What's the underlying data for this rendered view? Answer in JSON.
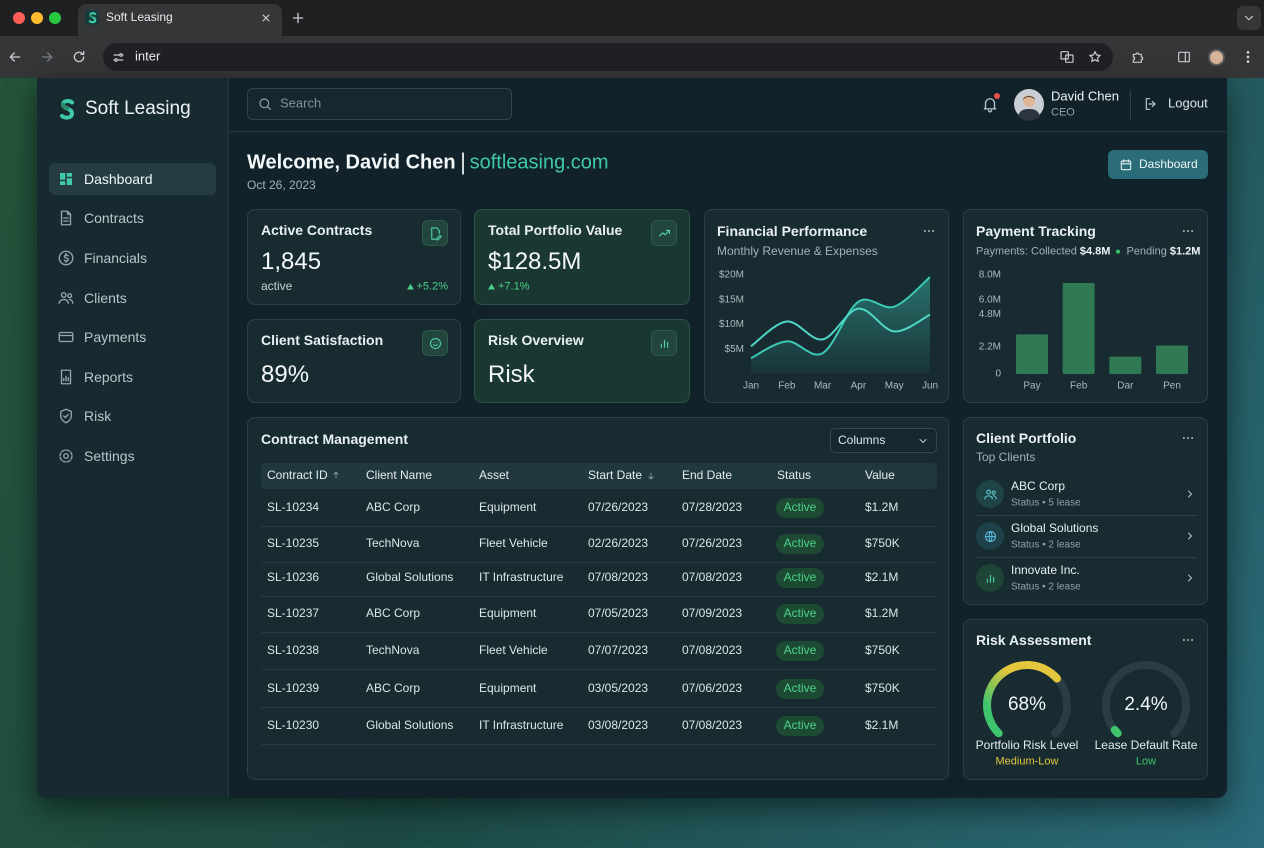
{
  "browser": {
    "tab_title": "Soft Leasing",
    "url": "inter"
  },
  "sidebar": {
    "brand": "Soft Leasing",
    "active": 0,
    "nav": [
      "Dashboard",
      "Contracts",
      "Financials",
      "Clients",
      "Payments",
      "Reports",
      "Risk",
      "Settings"
    ]
  },
  "topbar": {
    "search_placeholder": "Search",
    "user_name": "David Chen",
    "user_role": "CEO",
    "logout": "Logout"
  },
  "header": {
    "welcome": "Welcome, David Chen",
    "domain": "softleasing.com",
    "date": "Oct 26, 2023",
    "button": "Dashboard"
  },
  "kpis": [
    {
      "title": "Active Contracts",
      "value": "1,845",
      "note": "active",
      "change": "+5.2%"
    },
    {
      "title": "Total Portfolio Value",
      "value": "$128.5M",
      "change": "+7.1%"
    },
    {
      "title": "Client Satisfaction",
      "value": "89%"
    },
    {
      "title": "Risk Overview",
      "value": "Risk"
    }
  ],
  "chart_data": [
    {
      "type": "line",
      "title": "Financial Performance",
      "subtitle": "Monthly Revenue & Expenses",
      "categories": [
        "Jan",
        "Feb",
        "Mar",
        "Apr",
        "May",
        "Jun"
      ],
      "series": [
        {
          "color": "#3cc9b4",
          "area": true,
          "values": [
            3.2,
            6.6,
            4.2,
            14.6,
            13.6,
            19.6
          ]
        },
        {
          "color": "#4fd6c6",
          "values": [
            5.6,
            10.6,
            7,
            13.2,
            8.6,
            12
          ]
        }
      ],
      "ylim": [
        0,
        20
      ],
      "yticks": [
        {
          "value": 20,
          "label": "$20M"
        },
        {
          "value": 15,
          "label": "$15M"
        },
        {
          "value": 10,
          "label": "$10M"
        },
        {
          "value": 5,
          "label": "$5M"
        }
      ]
    },
    {
      "type": "bar",
      "title": "Payment Tracking",
      "summary": {
        "collected_label": "Payments: Collected",
        "collected": "$4.8M",
        "pending_label": "Pending",
        "pending": "$1.2M"
      },
      "categories": [
        "Pay",
        "Feb",
        "Dar",
        "Pen"
      ],
      "values": [
        3.2,
        7.35,
        1.4,
        2.3
      ],
      "color": "#2f7a55",
      "ylim": [
        0,
        8
      ],
      "yticks": [
        {
          "value": 8,
          "label": "8.0M"
        },
        {
          "value": 6,
          "label": "6.0M"
        },
        {
          "value": 4.8,
          "label": "4.8M"
        },
        {
          "value": 2.2,
          "label": "2.2M"
        },
        0
      ]
    }
  ],
  "contracts": {
    "title": "Contract Management",
    "columns_button": "Columns",
    "columns": [
      "Contract ID",
      "Client Name",
      "Asset",
      "Start Date",
      "End Date",
      "Status",
      "Value"
    ],
    "rows": [
      [
        "SL-10234",
        "ABC Corp",
        "Equipment",
        "07/26/2023",
        "07/28/2023",
        "Active",
        "$1.2M"
      ],
      [
        "SL-10235",
        "TechNova",
        "Fleet Vehicle",
        "02/26/2023",
        "07/26/2023",
        "Active",
        "$750K"
      ],
      [
        "SL-10236",
        "Global Solutions",
        "IT Infrastructure",
        "07/08/2023",
        "07/08/2023",
        "Active",
        "$2.1M"
      ],
      [
        "SL-10237",
        "ABC Corp",
        "Equipment",
        "07/05/2023",
        "07/09/2023",
        "Active",
        "$1.2M"
      ],
      [
        "SL-10238",
        "TechNova",
        "Fleet Vehicle",
        "07/07/2023",
        "07/08/2023",
        "Active",
        "$750K"
      ],
      [
        "SL-10239",
        "ABC Corp",
        "Equipment",
        "03/05/2023",
        "07/06/2023",
        "Active",
        "$750K"
      ],
      [
        "SL-10230",
        "Global Solutions",
        "IT Infrastructure",
        "03/08/2023",
        "07/08/2023",
        "Active",
        "$2.1M"
      ]
    ]
  },
  "client_portfolio": {
    "title": "Client Portfolio",
    "subtitle": "Top Clients",
    "clients": [
      {
        "name": "ABC Corp",
        "detail": "Status • 5 lease"
      },
      {
        "name": "Global Solutions",
        "detail": "Status • 2 lease"
      },
      {
        "name": "Innovate Inc.",
        "detail": "Status • 2 lease"
      }
    ]
  },
  "risk_assessment": {
    "title": "Risk Assessment",
    "gauges": [
      {
        "value": 68,
        "value_label": "68%",
        "label": "Portfolio Risk Level",
        "level": "Medium-Low",
        "color": "#e3c53e"
      },
      {
        "value": 2.4,
        "value_label": "2.4%",
        "label": "Lease Default Rate",
        "level": "Low",
        "color": "#3ec46d"
      }
    ]
  }
}
